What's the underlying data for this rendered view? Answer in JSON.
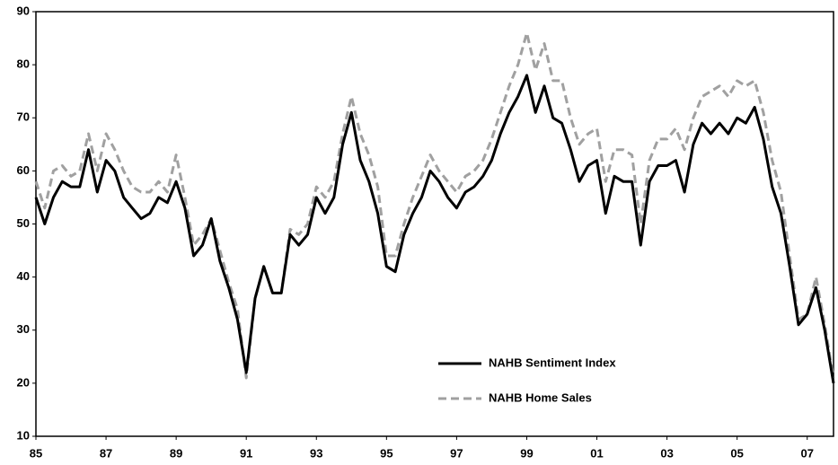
{
  "chart_data": {
    "type": "line",
    "x": [
      1985,
      1985.25,
      1985.5,
      1985.75,
      1986,
      1986.25,
      1986.5,
      1986.75,
      1987,
      1987.25,
      1987.5,
      1987.75,
      1988,
      1988.25,
      1988.5,
      1988.75,
      1989,
      1989.25,
      1989.5,
      1989.75,
      1990,
      1990.25,
      1990.5,
      1990.75,
      1991,
      1991.25,
      1991.5,
      1991.75,
      1992,
      1992.25,
      1992.5,
      1992.75,
      1993,
      1993.25,
      1993.5,
      1993.75,
      1994,
      1994.25,
      1994.5,
      1994.75,
      1995,
      1995.25,
      1995.5,
      1995.75,
      1996,
      1996.25,
      1996.5,
      1996.75,
      1997,
      1997.25,
      1997.5,
      1997.75,
      1998,
      1998.25,
      1998.5,
      1998.75,
      1999,
      1999.25,
      1999.5,
      1999.75,
      2000,
      2000.25,
      2000.5,
      2000.75,
      2001,
      2001.25,
      2001.5,
      2001.75,
      2002,
      2002.25,
      2002.5,
      2002.75,
      2003,
      2003.25,
      2003.5,
      2003.75,
      2004,
      2004.25,
      2004.5,
      2004.75,
      2005,
      2005.25,
      2005.5,
      2005.75,
      2006,
      2006.25,
      2006.5,
      2006.75,
      2007,
      2007.25,
      2007.5,
      2007.75
    ],
    "series": [
      {
        "name": "NAHB Sentiment Index",
        "color": "#000000",
        "dash": false,
        "values": [
          55,
          50,
          55,
          58,
          57,
          57,
          64,
          56,
          62,
          60,
          55,
          53,
          51,
          52,
          55,
          54,
          58,
          53,
          44,
          46,
          51,
          43,
          38,
          32,
          22,
          36,
          42,
          37,
          37,
          48,
          46,
          48,
          55,
          52,
          55,
          65,
          71,
          62,
          58,
          52,
          42,
          41,
          48,
          52,
          55,
          60,
          58,
          55,
          53,
          56,
          57,
          59,
          62,
          67,
          71,
          74,
          78,
          71,
          76,
          70,
          69,
          64,
          58,
          61,
          62,
          52,
          59,
          58,
          58,
          46,
          58,
          61,
          61,
          62,
          56,
          65,
          69,
          67,
          69,
          67,
          70,
          69,
          72,
          66,
          57,
          52,
          42,
          31,
          33,
          38,
          30,
          20
        ]
      },
      {
        "name": "NAHB Home Sales",
        "color": "#a0a0a0",
        "dash": true,
        "values": [
          58,
          53,
          60,
          61,
          59,
          60,
          67,
          60,
          67,
          64,
          60,
          57,
          56,
          56,
          58,
          56,
          63,
          55,
          46,
          48,
          51,
          45,
          39,
          34,
          21,
          36,
          42,
          37,
          37,
          49,
          48,
          50,
          57,
          55,
          58,
          67,
          74,
          67,
          63,
          57,
          44,
          44,
          50,
          55,
          59,
          63,
          60,
          58,
          56,
          59,
          60,
          62,
          66,
          71,
          76,
          80,
          86,
          79,
          84,
          77,
          77,
          70,
          65,
          67,
          68,
          58,
          64,
          64,
          63,
          50,
          62,
          66,
          66,
          68,
          64,
          70,
          74,
          75,
          76,
          74,
          77,
          76,
          77,
          71,
          62,
          56,
          44,
          32,
          33,
          40,
          31,
          21
        ]
      }
    ],
    "xlim": [
      1985,
      2007.75
    ],
    "xticks": [
      {
        "value": 1985,
        "label": "85"
      },
      {
        "value": 1987,
        "label": "87"
      },
      {
        "value": 1989,
        "label": "89"
      },
      {
        "value": 1991,
        "label": "91"
      },
      {
        "value": 1993,
        "label": "93"
      },
      {
        "value": 1995,
        "label": "95"
      },
      {
        "value": 1997,
        "label": "97"
      },
      {
        "value": 1999,
        "label": "99"
      },
      {
        "value": 2001,
        "label": "01"
      },
      {
        "value": 2003,
        "label": "03"
      },
      {
        "value": 2005,
        "label": "05"
      },
      {
        "value": 2007,
        "label": "07"
      }
    ],
    "ylim": [
      10,
      90
    ],
    "yticks": [
      10,
      20,
      30,
      40,
      50,
      60,
      70,
      80,
      90
    ]
  }
}
